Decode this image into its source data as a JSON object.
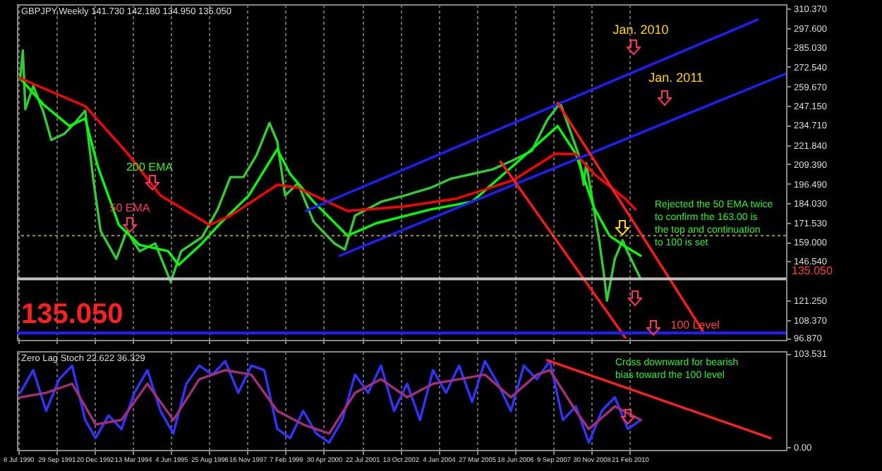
{
  "chart_data": [
    {
      "type": "line",
      "title": "GBPJPY,Weekly 141.730 142.180 134.950 135.050",
      "xlim": [
        "1990-06-24",
        "2015-03-01"
      ],
      "xticks": [
        "1990-07-08",
        "1991-09-29",
        "1992-12-20",
        "1994-03-13",
        "1995-06-04",
        "1996-08-25",
        "1997-11-16",
        "1999-02-07",
        "2000-04-30",
        "2001-07-22",
        "2002-10-13",
        "2004-01-04",
        "2005-03-27",
        "2006-06-18",
        "2007-09-09",
        "2008-11-30",
        "2010-02-21"
      ],
      "ylim": [
        95.5,
        313
      ],
      "yticks": [
        {
          "value": 310.37,
          "label": "310.370"
        },
        {
          "value": 297.6,
          "label": "297.600"
        },
        {
          "value": 285.03,
          "label": "285.030"
        },
        {
          "value": 272.54,
          "label": "272.540"
        },
        {
          "value": 259.67,
          "label": "259.670"
        },
        {
          "value": 247.15,
          "label": "247.150"
        },
        {
          "value": 234.71,
          "label": "234.710"
        },
        {
          "value": 221.84,
          "label": "221.840"
        },
        {
          "value": 209.39,
          "label": "209.390"
        },
        {
          "value": 196.49,
          "label": "196.490"
        },
        {
          "value": 184.03,
          "label": "184.030"
        },
        {
          "value": 171.53,
          "label": "171.530"
        },
        {
          "value": 159.0,
          "label": "159.000"
        },
        {
          "value": 146.54,
          "label": "146.540"
        },
        {
          "value": 121.25,
          "label": "121.250"
        },
        {
          "value": 108.37,
          "label": "108.370"
        },
        {
          "value": 96.87,
          "label": "96.870"
        }
      ],
      "grid": "x",
      "tick_labels": "y",
      "series": [
        {
          "color": "#33cc33",
          "x": [
            "1990-08",
            "1990-09",
            "1990-10",
            "1991-01",
            "1991-05",
            "1991-08",
            "1992-01",
            "1992-05",
            "1992-09",
            "1992-12",
            "1993-03",
            "1993-09",
            "1994-01",
            "1994-06",
            "1994-12",
            "1995-06",
            "1995-10",
            "1996-06",
            "1996-12",
            "1997-05",
            "1997-10",
            "1998-03",
            "1998-08",
            "1998-11",
            "1999-02",
            "1999-07",
            "2000-01",
            "2000-09",
            "2001-01",
            "2001-05",
            "2002-03",
            "2002-12",
            "2003-10",
            "2004-06",
            "2005-02",
            "2005-10",
            "2006-06",
            "2007-01",
            "2007-07",
            "2007-12",
            "2008-07",
            "2008-09",
            "2008-10",
            "2009-03",
            "2009-05",
            "2009-06",
            "2009-09",
            "2009-12",
            "2010-02",
            "2010-07"
          ],
          "values": [
            265,
            283,
            245,
            260,
            243,
            225,
            229,
            236,
            244,
            201,
            166,
            148,
            166,
            153,
            158,
            133,
            153,
            162,
            180,
            201,
            201,
            215,
            236,
            224,
            189,
            197,
            172,
            158,
            154,
            176,
            185,
            189,
            194,
            200,
            203,
            206,
            212,
            218,
            238,
            249,
            216,
            196,
            210,
            160,
            136,
            121,
            148,
            160,
            152,
            135
          ]
        },
        {
          "color": "#00ff00",
          "x": [
            "1990-08",
            "1991-05",
            "1992-03",
            "1992-09",
            "1993-02",
            "1993-10",
            "1994-06",
            "1995-05",
            "1995-09",
            "1996-06",
            "1997-01",
            "1997-12",
            "1998-11",
            "1999-04",
            "2000-01",
            "2001-02",
            "2002-01",
            "2003-10",
            "2005-02",
            "2006-11",
            "2007-11",
            "2008-06",
            "2009-01",
            "2009-07",
            "2010-01",
            "2010-07"
          ],
          "values": [
            265,
            248,
            234,
            239,
            207,
            170,
            157,
            153,
            144,
            158,
            171,
            189,
            219,
            203,
            185,
            163,
            171,
            180,
            185,
            216,
            234,
            216,
            181,
            163,
            156,
            150
          ]
        },
        {
          "color": "#ff0000",
          "x": [
            "1990-08",
            "1992-09",
            "1994-01",
            "1995-02",
            "1996-09",
            "1997-05",
            "1998-11",
            "1999-07",
            "2001-02",
            "2002-12",
            "2004-08",
            "2006-06",
            "2007-10",
            "2008-06",
            "2009-01",
            "2010-01",
            "2010-05"
          ],
          "values": [
            265,
            247,
            217,
            189,
            170,
            176,
            196,
            194,
            179,
            182,
            187,
            199,
            216,
            216,
            203,
            187,
            180
          ]
        },
        {
          "color": "#1e1eff",
          "x": [
            "1999-10",
            "2014-04"
          ],
          "values": [
            179,
            303
          ]
        },
        {
          "color": "#1e1eff",
          "x": [
            "2000-11",
            "2015-03"
          ],
          "values": [
            150,
            268
          ]
        },
        {
          "color": "#ff1a1a",
          "x": [
            "2007-11",
            "2012-07"
          ],
          "values": [
            249,
            101
          ]
        },
        {
          "color": "#ff1a1a",
          "x": [
            "2006-01",
            "2010-01"
          ],
          "values": [
            211,
            97
          ]
        }
      ],
      "ref_lines": [
        {
          "axis": "y",
          "value": 163,
          "color": "#a09040",
          "line_style": "dotted"
        },
        {
          "axis": "y",
          "value": 135.05,
          "label": "135.050",
          "color": "#c0c0c0"
        },
        {
          "axis": "y",
          "value": 100,
          "label": "100 Level",
          "color": "#2020ff"
        }
      ],
      "annotations": [
        "200 EMA",
        "50 EMA",
        "Jan. 2010",
        "Jan. 2011",
        "Rejected the 50 EMA twice to confirm the 163.00 is the top and continuation to 100 is set",
        "135.050"
      ]
    },
    {
      "type": "line",
      "title": "Zero Lag Stoch 22.622 36.329",
      "xlim": [
        "1990-06-24",
        "2015-03-01"
      ],
      "xticks": [
        {
          "value": "1990-07-08",
          "label": "8 Jul 1990"
        },
        {
          "value": "1991-09-29",
          "label": "29 Sep 1991"
        },
        {
          "value": "1992-12-20",
          "label": "20 Dec 1992"
        },
        {
          "value": "1994-03-13",
          "label": "13 Mar 1994"
        },
        {
          "value": "1995-06-04",
          "label": "4 Jun 1995"
        },
        {
          "value": "1996-08-25",
          "label": "25 Aug 1996"
        },
        {
          "value": "1997-11-16",
          "label": "16 Nov 1997"
        },
        {
          "value": "1999-02-07",
          "label": "7 Feb 1999"
        },
        {
          "value": "2000-04-30",
          "label": "30 Apr 2000"
        },
        {
          "value": "2001-07-22",
          "label": "22 Jul 2001"
        },
        {
          "value": "2002-10-13",
          "label": "13 Oct 2002"
        },
        {
          "value": "2004-01-04",
          "label": "4 Jan 2004"
        },
        {
          "value": "2005-03-27",
          "label": "27 Mar 2005"
        },
        {
          "value": "2006-06-18",
          "label": "18 Jun 2006"
        },
        {
          "value": "2007-09-09",
          "label": "9 Sep 2007"
        },
        {
          "value": "2008-11-30",
          "label": "30 Nov 2008"
        },
        {
          "value": "2010-02-21",
          "label": "21 Feb 2010"
        }
      ],
      "ylim": [
        -3,
        106
      ],
      "yticks": [
        {
          "value": 103.531,
          "label": "103.531"
        },
        {
          "value": 0,
          "label": "0.00"
        }
      ],
      "grid": "x",
      "series": [
        {
          "color": "#3333ff",
          "x": [
            "1990-08",
            "1991-01",
            "1991-06",
            "1991-11",
            "1992-04",
            "1992-09",
            "1993-01",
            "1993-06",
            "1993-11",
            "1994-04",
            "1994-09",
            "1995-02",
            "1995-07",
            "1995-12",
            "1996-05",
            "1996-10",
            "1997-03",
            "1997-08",
            "1998-01",
            "1998-06",
            "1998-11",
            "1999-04",
            "1999-09",
            "2000-02",
            "2000-07",
            "2000-12",
            "2001-05",
            "2001-10",
            "2002-03",
            "2002-08",
            "2003-01",
            "2003-06",
            "2003-11",
            "2004-04",
            "2004-09",
            "2005-02",
            "2005-07",
            "2005-12",
            "2006-05",
            "2006-10",
            "2007-03",
            "2007-08",
            "2008-01",
            "2008-06",
            "2008-11",
            "2009-04",
            "2009-09",
            "2010-02",
            "2010-07"
          ],
          "values": [
            60,
            85,
            40,
            75,
            90,
            30,
            10,
            35,
            20,
            60,
            85,
            40,
            15,
            70,
            90,
            80,
            95,
            60,
            90,
            85,
            20,
            10,
            40,
            15,
            5,
            30,
            80,
            60,
            90,
            40,
            70,
            30,
            85,
            60,
            90,
            50,
            95,
            70,
            40,
            90,
            75,
            95,
            30,
            45,
            5,
            40,
            55,
            20,
            30
          ]
        },
        {
          "color": "#a0307a",
          "x": [
            "1990-08",
            "1991-06",
            "1992-04",
            "1993-01",
            "1993-11",
            "1994-09",
            "1995-07",
            "1996-05",
            "1997-03",
            "1998-01",
            "1998-11",
            "1999-09",
            "2000-07",
            "2001-05",
            "2002-03",
            "2003-01",
            "2003-11",
            "2004-09",
            "2005-07",
            "2006-05",
            "2007-03",
            "2007-08",
            "2008-06",
            "2008-11",
            "2009-09",
            "2010-07"
          ],
          "values": [
            55,
            60,
            70,
            25,
            30,
            70,
            30,
            75,
            85,
            80,
            40,
            25,
            15,
            60,
            75,
            55,
            70,
            75,
            80,
            55,
            80,
            85,
            40,
            20,
            45,
            30
          ]
        },
        {
          "color": "#ff2020",
          "x": [
            "2007-07",
            "2014-09"
          ],
          "values": [
            96,
            10
          ]
        }
      ],
      "annotations": [
        "Cross downward for bearish bias toward the 100 level"
      ]
    }
  ]
}
